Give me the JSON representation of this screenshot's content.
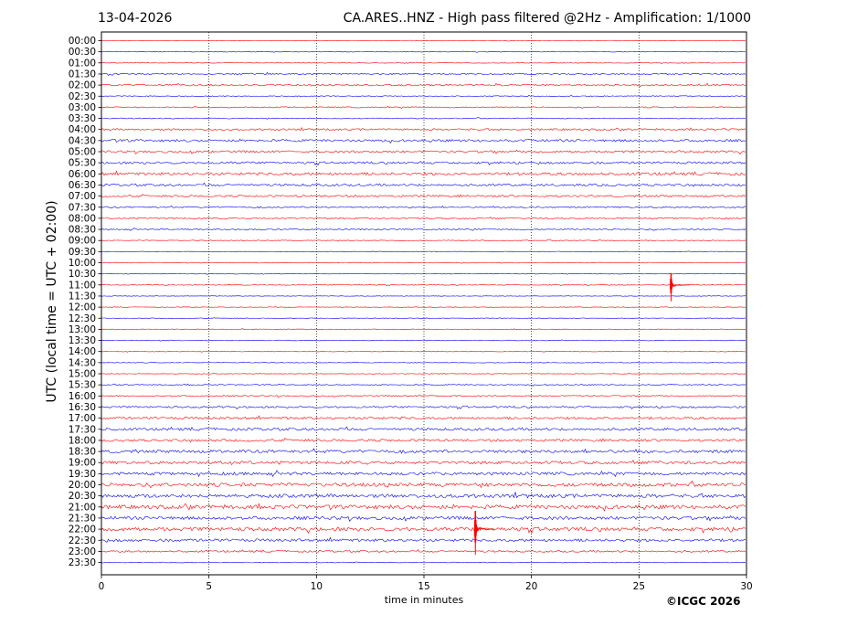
{
  "header": {
    "date": "13-04-2026",
    "title": "CA.ARES..HNZ - High pass filtered @2Hz - Amplification: 1/1000"
  },
  "footer": {
    "copyright": "©ICGC 2026"
  },
  "chart_data": {
    "type": "line",
    "title": "CA.ARES..HNZ - High pass filtered @2Hz - Amplification: 1/1000",
    "xlabel": "time in minutes",
    "ylabel": "UTC (local time = UTC + 02:00)",
    "xlim": [
      0,
      30
    ],
    "xticks": [
      0,
      5,
      10,
      15,
      20,
      25,
      30
    ],
    "grid": "vertical dotted lines at 5-minute intervals",
    "trace_colors": [
      "#ff0000",
      "#0000ff"
    ],
    "rows": [
      {
        "label": "00:00",
        "noise": 0.3
      },
      {
        "label": "00:30",
        "noise": 0.3
      },
      {
        "label": "01:00",
        "noise": 0.3
      },
      {
        "label": "01:30",
        "noise": 0.8
      },
      {
        "label": "02:00",
        "noise": 0.9
      },
      {
        "label": "02:30",
        "noise": 0.5
      },
      {
        "label": "03:00",
        "noise": 0.6
      },
      {
        "label": "03:30",
        "noise": 0.5
      },
      {
        "label": "04:00",
        "noise": 1.0
      },
      {
        "label": "04:30",
        "noise": 1.3
      },
      {
        "label": "05:00",
        "noise": 1.2
      },
      {
        "label": "05:30",
        "noise": 1.2
      },
      {
        "label": "06:00",
        "noise": 1.5
      },
      {
        "label": "06:30",
        "noise": 1.2
      },
      {
        "label": "07:00",
        "noise": 1.1
      },
      {
        "label": "07:30",
        "noise": 0.8
      },
      {
        "label": "08:00",
        "noise": 0.8
      },
      {
        "label": "08:30",
        "noise": 0.7
      },
      {
        "label": "09:00",
        "noise": 0.5
      },
      {
        "label": "09:30",
        "noise": 0.3
      },
      {
        "label": "10:00",
        "noise": 0.4
      },
      {
        "label": "10:30",
        "noise": 0.3
      },
      {
        "label": "11:00",
        "noise": 0.4
      },
      {
        "label": "11:30",
        "noise": 0.3
      },
      {
        "label": "12:00",
        "noise": 0.3
      },
      {
        "label": "12:30",
        "noise": 0.3
      },
      {
        "label": "13:00",
        "noise": 0.4
      },
      {
        "label": "13:30",
        "noise": 0.4
      },
      {
        "label": "14:00",
        "noise": 0.3
      },
      {
        "label": "14:30",
        "noise": 0.3
      },
      {
        "label": "15:00",
        "noise": 0.3
      },
      {
        "label": "15:30",
        "noise": 0.6
      },
      {
        "label": "16:00",
        "noise": 0.7
      },
      {
        "label": "16:30",
        "noise": 1.0
      },
      {
        "label": "17:00",
        "noise": 1.3
      },
      {
        "label": "17:30",
        "noise": 1.4
      },
      {
        "label": "18:00",
        "noise": 1.3
      },
      {
        "label": "18:30",
        "noise": 1.6
      },
      {
        "label": "19:00",
        "noise": 1.6
      },
      {
        "label": "19:30",
        "noise": 1.6
      },
      {
        "label": "20:00",
        "noise": 1.9
      },
      {
        "label": "20:30",
        "noise": 1.9
      },
      {
        "label": "21:00",
        "noise": 2.1
      },
      {
        "label": "21:30",
        "noise": 1.7
      },
      {
        "label": "22:00",
        "noise": 2.0
      },
      {
        "label": "22:30",
        "noise": 1.5
      },
      {
        "label": "23:00",
        "noise": 1.0
      },
      {
        "label": "23:30",
        "noise": 0.4
      }
    ],
    "events": [
      {
        "row": "11:00",
        "minute": 26.5,
        "amplitude": 18
      },
      {
        "row": "22:00",
        "minute": 17.4,
        "amplitude": 28
      }
    ]
  }
}
